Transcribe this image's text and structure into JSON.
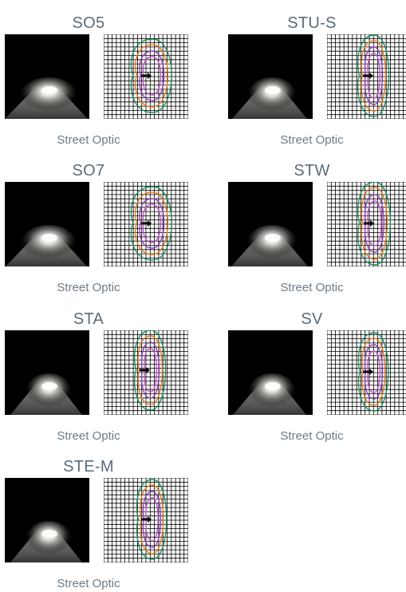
{
  "colors": {
    "title_text": "#5b6b7a",
    "subtitle_text": "#6e7a86",
    "contour_green": "#1e8a5a",
    "contour_orange": "#e07a1f",
    "contour_purple": "#8e3db3",
    "contour_magenta": "#c04fc8",
    "grid_line": "#000000"
  },
  "optics": [
    {
      "name": "SO5",
      "subtitle": "Street Optic"
    },
    {
      "name": "STU-S",
      "subtitle": "Street Optic"
    },
    {
      "name": "SO7",
      "subtitle": "Street Optic"
    },
    {
      "name": "STW",
      "subtitle": "Street Optic"
    },
    {
      "name": "STA",
      "subtitle": "Street Optic"
    },
    {
      "name": "SV",
      "subtitle": "Street Optic"
    },
    {
      "name": "STE-M",
      "subtitle": "Street Optic"
    }
  ]
}
